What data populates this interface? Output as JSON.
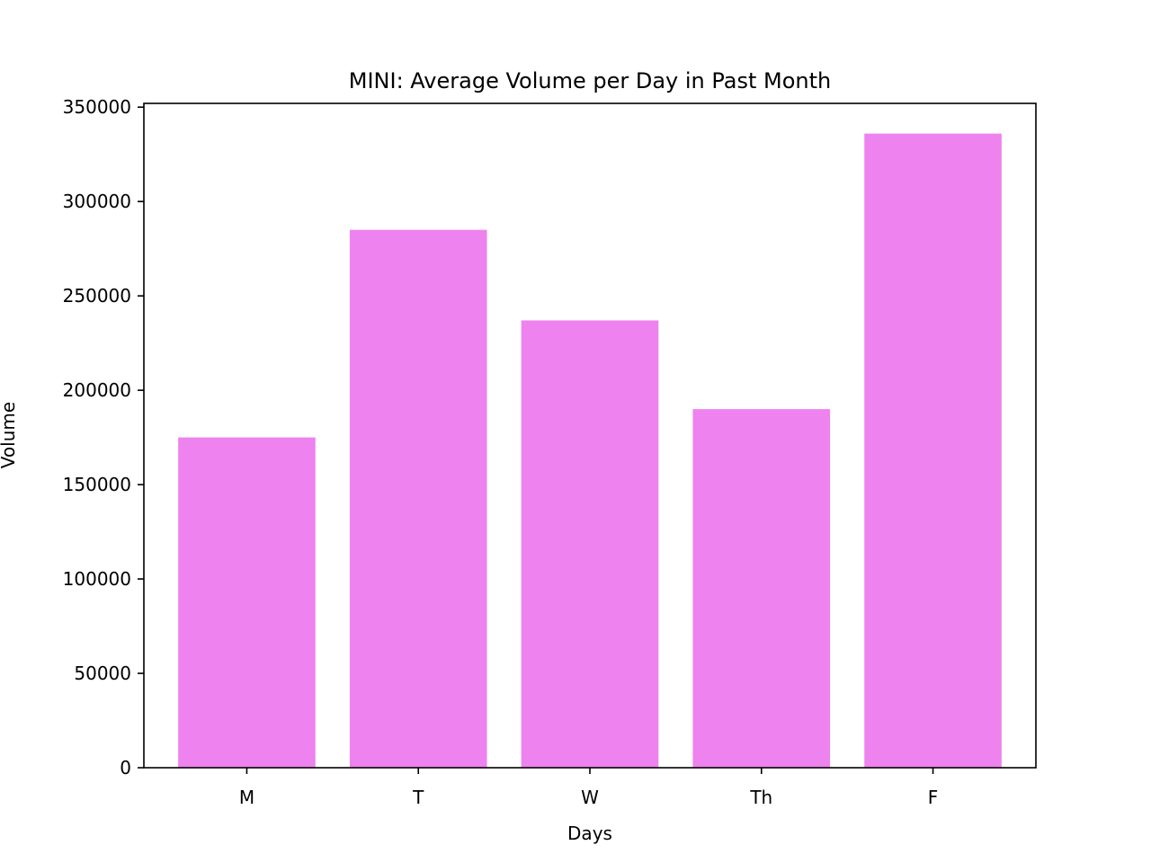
{
  "chart_data": {
    "type": "bar",
    "title": "MINI: Average Volume per Day in Past Month",
    "xlabel": "Days",
    "ylabel": "Volume",
    "categories": [
      "M",
      "T",
      "W",
      "Th",
      "F"
    ],
    "values": [
      175000,
      285000,
      237000,
      190000,
      336000
    ],
    "ylim": [
      0,
      352000
    ],
    "yticks": [
      0,
      50000,
      100000,
      150000,
      200000,
      250000,
      300000,
      350000
    ],
    "ytick_labels": [
      "0",
      "50000",
      "100000",
      "150000",
      "200000",
      "250000",
      "300000",
      "350000"
    ],
    "grid": false,
    "legend": "none",
    "bar_color": "#ee82ee",
    "axis_color": "#000000"
  }
}
